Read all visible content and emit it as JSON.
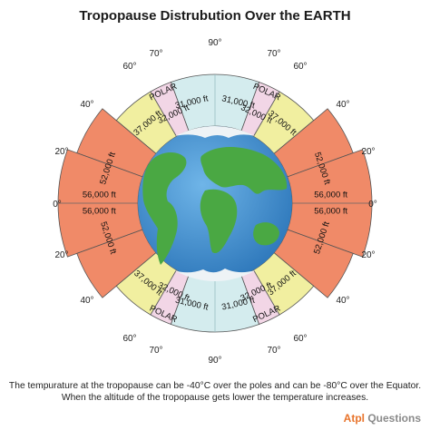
{
  "title": "Tropopause Distrubution Over the EARTH",
  "latitude_labels": {
    "deg_0": "0°",
    "deg_20": "20°",
    "deg_40": "40°",
    "deg_60": "60°",
    "deg_70": "70°",
    "deg_90": "90°"
  },
  "band_labels": {
    "equator": "56,000 ft",
    "tropics": "52,000 ft",
    "mid_latitude": "37,000 ft",
    "sub_polar": "32,000 ft",
    "polar_altitude": "31,000 ft",
    "polar_name": "POLAR"
  },
  "colors": {
    "equatorial_band": "#f08a68",
    "mid_latitude_band": "#f1efa0",
    "sub_polar_band": "#f2d6e6",
    "polar_band": "#d4ecee",
    "ocean": "#3f8fd0",
    "land": "#4aa843"
  },
  "caption": {
    "line1": "The tempurature at the tropopause can be -40°C over the poles and can be -80°C over the Equator.",
    "line2": "When the altitude of the tropopause gets lower the temperature increases."
  },
  "brand": {
    "accent_part": "Atpl",
    "rest": " Questions"
  }
}
